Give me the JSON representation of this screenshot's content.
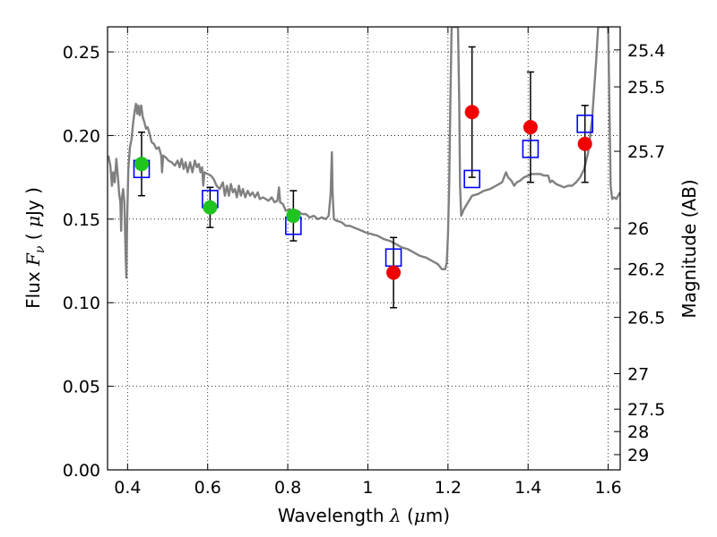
{
  "chart_data": {
    "type": "scatter",
    "xlabel": "Wavelength  λ (μm)",
    "ylabel": "Flux  F_ν  ( μJy )",
    "y2label": "Magnitude (AB)",
    "xlim": [
      0.35,
      1.63
    ],
    "ylim": [
      0.0,
      0.265
    ],
    "grid": true,
    "x_ticks": [
      0.4,
      0.6,
      0.8,
      1.0,
      1.2,
      1.4,
      1.6
    ],
    "x_tick_labels": [
      "0.4",
      "0.6",
      "0.8",
      "1",
      "1.2",
      "1.4",
      "1.6"
    ],
    "y_ticks": [
      0.0,
      0.05,
      0.1,
      0.15,
      0.2,
      0.25
    ],
    "y_tick_labels": [
      "0.00",
      "0.05",
      "0.10",
      "0.15",
      "0.20",
      "0.25"
    ],
    "y2_ticks": [
      25.4,
      25.5,
      25.7,
      26.0,
      26.2,
      26.5,
      27.0,
      27.5,
      28.0,
      29.0
    ],
    "y2_tick_labels": [
      "25.4",
      "25.5",
      "25.7",
      "26",
      "26.2",
      "26.5",
      "27",
      "27.5",
      "28",
      "29"
    ],
    "model_spectrum": {
      "color": "#808080",
      "points": [
        [
          0.352,
          0.188
        ],
        [
          0.357,
          0.182
        ],
        [
          0.361,
          0.17
        ],
        [
          0.364,
          0.178
        ],
        [
          0.368,
          0.172
        ],
        [
          0.372,
          0.186
        ],
        [
          0.376,
          0.175
        ],
        [
          0.379,
          0.165
        ],
        [
          0.382,
          0.16
        ],
        [
          0.384,
          0.143
        ],
        [
          0.386,
          0.163
        ],
        [
          0.389,
          0.168
        ],
        [
          0.392,
          0.16
        ],
        [
          0.395,
          0.13
        ],
        [
          0.397,
          0.115
        ],
        [
          0.399,
          0.15
        ],
        [
          0.402,
          0.18
        ],
        [
          0.406,
          0.193
        ],
        [
          0.41,
          0.198
        ],
        [
          0.414,
          0.208
        ],
        [
          0.418,
          0.215
        ],
        [
          0.421,
          0.219
        ],
        [
          0.424,
          0.213
        ],
        [
          0.427,
          0.218
        ],
        [
          0.43,
          0.212
        ],
        [
          0.434,
          0.218
        ],
        [
          0.438,
          0.211
        ],
        [
          0.442,
          0.208
        ],
        [
          0.446,
          0.204
        ],
        [
          0.45,
          0.205
        ],
        [
          0.455,
          0.201
        ],
        [
          0.46,
          0.196
        ],
        [
          0.466,
          0.195
        ],
        [
          0.472,
          0.192
        ],
        [
          0.478,
          0.193
        ],
        [
          0.484,
          0.188
        ],
        [
          0.486,
          0.178
        ],
        [
          0.489,
          0.188
        ],
        [
          0.495,
          0.187
        ],
        [
          0.502,
          0.185
        ],
        [
          0.51,
          0.184
        ],
        [
          0.518,
          0.182
        ],
        [
          0.525,
          0.185
        ],
        [
          0.53,
          0.181
        ],
        [
          0.535,
          0.186
        ],
        [
          0.54,
          0.18
        ],
        [
          0.545,
          0.184
        ],
        [
          0.55,
          0.178
        ],
        [
          0.556,
          0.184
        ],
        [
          0.562,
          0.178
        ],
        [
          0.568,
          0.185
        ],
        [
          0.573,
          0.181
        ],
        [
          0.578,
          0.183
        ],
        [
          0.582,
          0.178
        ],
        [
          0.586,
          0.181
        ],
        [
          0.589,
          0.17
        ],
        [
          0.592,
          0.178
        ],
        [
          0.6,
          0.177
        ],
        [
          0.608,
          0.176
        ],
        [
          0.615,
          0.174
        ],
        [
          0.622,
          0.17
        ],
        [
          0.63,
          0.168
        ],
        [
          0.638,
          0.172
        ],
        [
          0.643,
          0.164
        ],
        [
          0.648,
          0.17
        ],
        [
          0.653,
          0.164
        ],
        [
          0.658,
          0.171
        ],
        [
          0.663,
          0.166
        ],
        [
          0.668,
          0.168
        ],
        [
          0.673,
          0.163
        ],
        [
          0.678,
          0.17
        ],
        [
          0.683,
          0.164
        ],
        [
          0.688,
          0.168
        ],
        [
          0.694,
          0.163
        ],
        [
          0.7,
          0.167
        ],
        [
          0.706,
          0.164
        ],
        [
          0.712,
          0.166
        ],
        [
          0.718,
          0.163
        ],
        [
          0.725,
          0.166
        ],
        [
          0.73,
          0.162
        ],
        [
          0.738,
          0.163
        ],
        [
          0.745,
          0.162
        ],
        [
          0.752,
          0.161
        ],
        [
          0.76,
          0.163
        ],
        [
          0.767,
          0.16
        ],
        [
          0.774,
          0.161
        ],
        [
          0.778,
          0.169
        ],
        [
          0.781,
          0.16
        ],
        [
          0.788,
          0.159
        ],
        [
          0.795,
          0.155
        ],
        [
          0.805,
          0.156
        ],
        [
          0.815,
          0.154
        ],
        [
          0.825,
          0.155
        ],
        [
          0.835,
          0.153
        ],
        [
          0.845,
          0.153
        ],
        [
          0.855,
          0.151
        ],
        [
          0.865,
          0.152
        ],
        [
          0.875,
          0.15
        ],
        [
          0.885,
          0.151
        ],
        [
          0.895,
          0.15
        ],
        [
          0.902,
          0.152
        ],
        [
          0.907,
          0.165
        ],
        [
          0.91,
          0.19
        ],
        [
          0.912,
          0.166
        ],
        [
          0.915,
          0.15
        ],
        [
          0.922,
          0.149
        ],
        [
          0.935,
          0.148
        ],
        [
          0.945,
          0.146
        ],
        [
          0.955,
          0.146
        ],
        [
          0.965,
          0.145
        ],
        [
          0.975,
          0.144
        ],
        [
          0.985,
          0.143
        ],
        [
          0.995,
          0.142
        ],
        [
          1.01,
          0.141
        ],
        [
          1.025,
          0.14
        ],
        [
          1.04,
          0.138
        ],
        [
          1.055,
          0.137
        ],
        [
          1.07,
          0.135
        ],
        [
          1.085,
          0.133
        ],
        [
          1.1,
          0.132
        ],
        [
          1.115,
          0.13
        ],
        [
          1.13,
          0.128
        ],
        [
          1.145,
          0.127
        ],
        [
          1.16,
          0.125
        ],
        [
          1.175,
          0.123
        ],
        [
          1.185,
          0.12
        ],
        [
          1.193,
          0.12
        ],
        [
          1.197,
          0.124
        ],
        [
          1.2,
          0.14
        ],
        [
          1.203,
          0.17
        ],
        [
          1.206,
          0.22
        ],
        [
          1.209,
          0.265
        ],
        [
          1.225,
          0.265
        ],
        [
          1.228,
          0.22
        ],
        [
          1.23,
          0.17
        ],
        [
          1.233,
          0.152
        ],
        [
          1.24,
          0.156
        ],
        [
          1.25,
          0.16
        ],
        [
          1.26,
          0.164
        ],
        [
          1.275,
          0.165
        ],
        [
          1.29,
          0.167
        ],
        [
          1.305,
          0.168
        ],
        [
          1.32,
          0.17
        ],
        [
          1.335,
          0.172
        ],
        [
          1.34,
          0.175
        ],
        [
          1.345,
          0.178
        ],
        [
          1.35,
          0.175
        ],
        [
          1.358,
          0.173
        ],
        [
          1.365,
          0.17
        ],
        [
          1.372,
          0.172
        ],
        [
          1.38,
          0.173
        ],
        [
          1.39,
          0.175
        ],
        [
          1.4,
          0.176
        ],
        [
          1.41,
          0.177
        ],
        [
          1.42,
          0.177
        ],
        [
          1.43,
          0.177
        ],
        [
          1.44,
          0.176
        ],
        [
          1.45,
          0.176
        ],
        [
          1.455,
          0.172
        ],
        [
          1.46,
          0.173
        ],
        [
          1.47,
          0.171
        ],
        [
          1.48,
          0.17
        ],
        [
          1.49,
          0.169
        ],
        [
          1.5,
          0.17
        ],
        [
          1.51,
          0.17
        ],
        [
          1.52,
          0.172
        ],
        [
          1.53,
          0.175
        ],
        [
          1.54,
          0.18
        ],
        [
          1.55,
          0.19
        ],
        [
          1.56,
          0.21
        ],
        [
          1.57,
          0.245
        ],
        [
          1.575,
          0.265
        ],
        [
          1.6,
          0.265
        ],
        [
          1.603,
          0.22
        ],
        [
          1.606,
          0.17
        ],
        [
          1.61,
          0.162
        ],
        [
          1.615,
          0.163
        ],
        [
          1.62,
          0.162
        ],
        [
          1.63,
          0.166
        ]
      ]
    },
    "series": [
      {
        "marker": "open-square",
        "color": "#0000ff",
        "points": [
          {
            "x": 0.435,
            "y": 0.18
          },
          {
            "x": 0.606,
            "y": 0.162
          },
          {
            "x": 0.814,
            "y": 0.146
          },
          {
            "x": 1.064,
            "y": 0.127
          },
          {
            "x": 1.26,
            "y": 0.174
          },
          {
            "x": 1.406,
            "y": 0.192
          },
          {
            "x": 1.542,
            "y": 0.207
          }
        ]
      },
      {
        "marker": "filled-circle",
        "color": "#1fc41f",
        "points": [
          {
            "x": 0.435,
            "y": 0.183,
            "err": 0.019
          },
          {
            "x": 0.606,
            "y": 0.157,
            "err": 0.012
          },
          {
            "x": 0.814,
            "y": 0.152,
            "err": 0.015
          }
        ]
      },
      {
        "marker": "filled-circle",
        "color": "#f20000",
        "points": [
          {
            "x": 1.064,
            "y": 0.118,
            "err": 0.021
          },
          {
            "x": 1.26,
            "y": 0.214,
            "err": 0.039
          },
          {
            "x": 1.406,
            "y": 0.205,
            "err": 0.033
          },
          {
            "x": 1.542,
            "y": 0.195,
            "err": 0.023
          }
        ]
      }
    ]
  }
}
